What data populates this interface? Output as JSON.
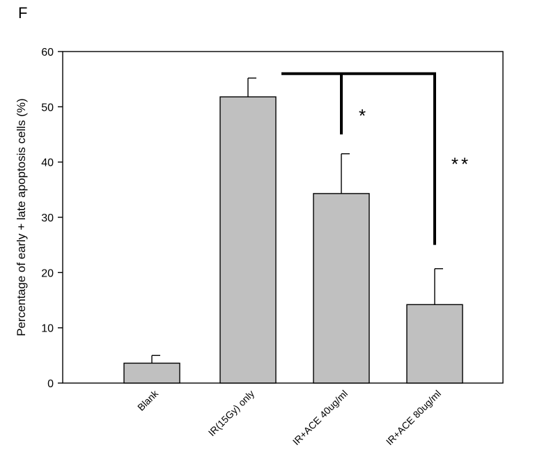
{
  "panel_label": "F",
  "chart_data": {
    "type": "bar",
    "categories": [
      "Blank",
      "IR(15Gy) only",
      "IR+ACE 40ug/ml",
      "IR+ACE 80ug/ml"
    ],
    "values": [
      3.6,
      51.8,
      34.3,
      14.2
    ],
    "errors": [
      1.4,
      3.4,
      7.2,
      6.5
    ],
    "ylabel": "Percentage of early + late apoptosis cells (%)",
    "xlabel": "",
    "ylim": [
      0,
      60
    ],
    "yticks": [
      0,
      10,
      20,
      30,
      40,
      50,
      60
    ],
    "bar_color": "#c0c0c0",
    "grid": false,
    "significance": [
      {
        "label": "*",
        "bracket_from_category": 1,
        "to_category": 2,
        "bracket_level": 56,
        "drop_to": 45
      },
      {
        "label": "**",
        "bracket_from_category": 1,
        "to_category": 3,
        "bracket_level": 56,
        "drop_to": 25
      }
    ]
  }
}
